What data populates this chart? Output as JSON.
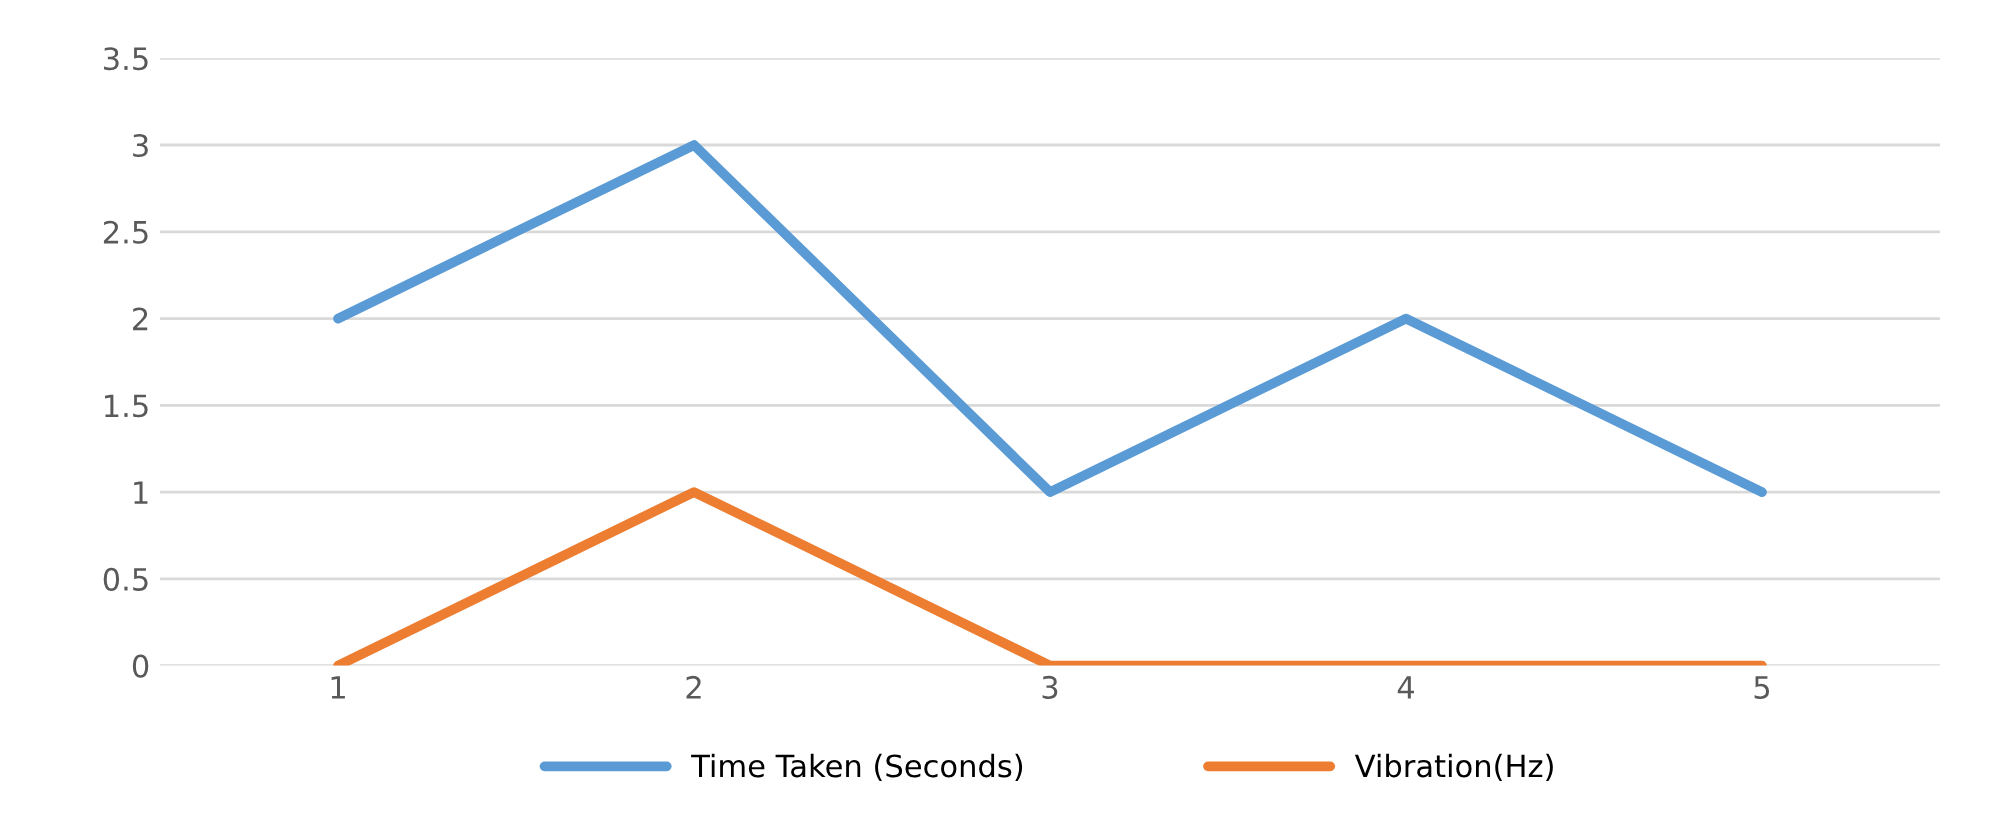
{
  "chart_data": {
    "type": "line",
    "categories": [
      "1",
      "2",
      "3",
      "4",
      "5"
    ],
    "series": [
      {
        "name": "Time Taken (Seconds)",
        "color": "#5b9bd5",
        "values": [
          2,
          3,
          1,
          2,
          1
        ]
      },
      {
        "name": "Vibration(Hz)",
        "color": "#ed7d31",
        "values": [
          0,
          1,
          0,
          0,
          0
        ]
      }
    ],
    "ylim": [
      0,
      3.5
    ],
    "yticks": [
      0,
      0.5,
      1,
      1.5,
      2,
      2.5,
      3,
      3.5
    ],
    "grid": "y",
    "legend": "bottom",
    "marker": "none",
    "line_style": "solid"
  }
}
